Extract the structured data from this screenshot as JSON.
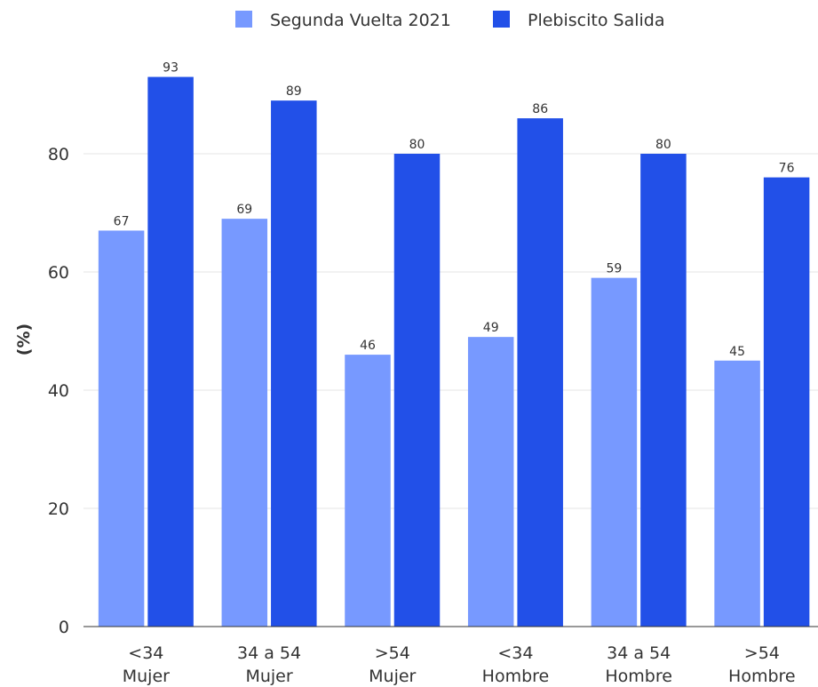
{
  "chart_data": {
    "type": "bar",
    "categories": [
      [
        "<34",
        "Mujer"
      ],
      [
        "34 a 54",
        "Mujer"
      ],
      [
        ">54",
        "Mujer"
      ],
      [
        "<34",
        "Hombre"
      ],
      [
        "34 a 54",
        "Hombre"
      ],
      [
        ">54",
        "Hombre"
      ]
    ],
    "series": [
      {
        "name": "Segunda Vuelta 2021",
        "color": "#7799ff",
        "values": [
          67,
          69,
          46,
          49,
          59,
          45
        ]
      },
      {
        "name": "Plebiscito Salida",
        "color": "#2250e8",
        "values": [
          93,
          89,
          80,
          86,
          80,
          76
        ]
      }
    ],
    "ylabel": "(%)",
    "xlabel": "",
    "ylim": [
      0,
      100
    ],
    "yticks": [
      0,
      20,
      40,
      60,
      80
    ],
    "grid": true,
    "legend": "top-center"
  }
}
